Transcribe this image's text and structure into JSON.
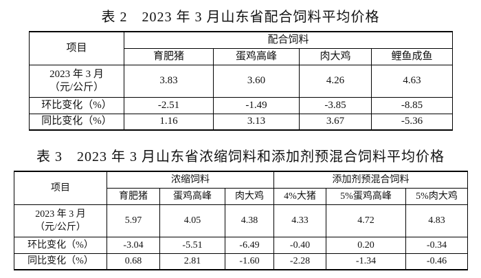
{
  "table2": {
    "title": "表 2　2023 年 3 月山东省配合饲料平均价格",
    "header": {
      "item": "项目",
      "groups": [
        {
          "name": "配合饲料",
          "columns": [
            "育肥猪",
            "蛋鸡高峰",
            "肉大鸡",
            "鲤鱼成鱼"
          ]
        }
      ]
    },
    "rows": [
      {
        "label": [
          "2023 年 3 月",
          "（元/公斤）"
        ],
        "values": [
          "3.83",
          "3.60",
          "4.26",
          "4.63"
        ]
      },
      {
        "label": "环比变化（%）",
        "values": [
          "-2.51",
          "-1.49",
          "-3.85",
          "-8.85"
        ]
      },
      {
        "label": "同比变化（%）",
        "values": [
          "1.16",
          "3.13",
          "3.67",
          "-5.36"
        ]
      }
    ]
  },
  "table3": {
    "title": "表 3　2023 年 3 月山东省浓缩饲料和添加剂预混合饲料平均价格",
    "header": {
      "item": "项目",
      "groups": [
        {
          "name": "浓缩饲料",
          "columns": [
            "育肥猪",
            "蛋鸡高峰",
            "肉大鸡"
          ]
        },
        {
          "name": "添加剂预混合饲料",
          "columns": [
            "4%大猪",
            "5%蛋鸡高峰",
            "5%肉大鸡"
          ]
        }
      ]
    },
    "rows": [
      {
        "label": [
          "2023 年 3 月",
          "（元/公斤）"
        ],
        "values": [
          "5.97",
          "4.05",
          "4.38",
          "4.33",
          "4.72",
          "4.83"
        ]
      },
      {
        "label": "环比变化（%）",
        "values": [
          "-3.04",
          "-5.51",
          "-6.49",
          "-0.40",
          "0.20",
          "-0.34"
        ]
      },
      {
        "label": "同比变化（%）",
        "values": [
          "0.68",
          "2.81",
          "-1.60",
          "-2.28",
          "-1.34",
          "-0.46"
        ]
      }
    ]
  }
}
